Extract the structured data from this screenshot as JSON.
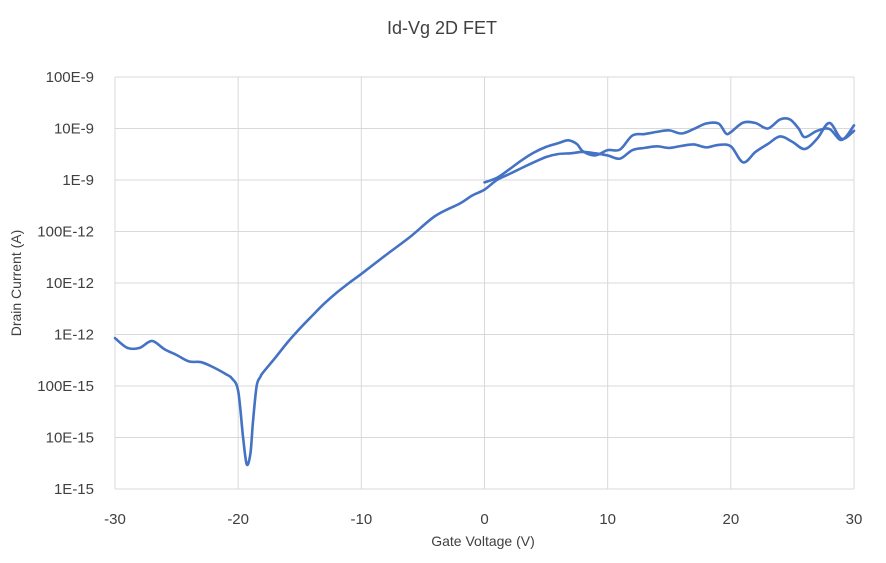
{
  "chart_data": {
    "type": "line",
    "title": "Id-Vg 2D FET",
    "xlabel": "Gate Voltage (V)",
    "ylabel": "Drain Current (A)",
    "xlim": [
      -30,
      30
    ],
    "ylim": [
      1e-15,
      1e-07
    ],
    "yscale": "log",
    "grid": true,
    "legend": "none",
    "color": "#4472C4",
    "x_ticks": [
      -30,
      -20,
      -10,
      0,
      10,
      20,
      30
    ],
    "x_tick_labels": [
      "-30",
      "-20",
      "-10",
      "0",
      "10",
      "20",
      "30"
    ],
    "y_ticks": [
      1e-15,
      1e-14,
      1e-13,
      1e-12,
      1e-11,
      1e-10,
      1e-09,
      1e-08,
      1e-07
    ],
    "y_tick_labels": [
      "1E-15",
      "10E-15",
      "100E-15",
      "1E-12",
      "10E-12",
      "100E-12",
      "1E-9",
      "10E-9",
      "100E-9"
    ],
    "series": [
      {
        "x": [
          0,
          1,
          2,
          3,
          4,
          5,
          6,
          6.8,
          7.5,
          8,
          9,
          10,
          11,
          12,
          13,
          14,
          15,
          16,
          17,
          18,
          19,
          19.6,
          20,
          21,
          22,
          23,
          24,
          24.8,
          25.5,
          26,
          27,
          28,
          29,
          30
        ],
        "y": [
          9e-10,
          1.1e-09,
          1.6e-09,
          2.4e-09,
          3.4e-09,
          4.4e-09,
          5.2e-09,
          5.9e-09,
          5e-09,
          3.6e-09,
          3e-09,
          3.8e-09,
          3.9e-09,
          7.3e-09,
          7.8e-09,
          8.6e-09,
          9.2e-09,
          8e-09,
          9.8e-09,
          1.25e-08,
          1.25e-08,
          8e-09,
          8.5e-09,
          1.3e-08,
          1.28e-08,
          1e-08,
          1.5e-08,
          1.5e-08,
          1e-08,
          6.8e-09,
          9e-09,
          9.8e-09,
          6e-09,
          1.15e-08
        ]
      },
      {
        "x": [
          -30,
          -29,
          -28,
          -27,
          -26,
          -25,
          -24,
          -23,
          -22,
          -21,
          -20.5,
          -20,
          -19.6,
          -19.3,
          -19,
          -18.8,
          -18.5,
          -18.2,
          -18,
          -17,
          -16,
          -15,
          -14,
          -13,
          -12,
          -11,
          -10,
          -8,
          -6,
          -4,
          -2,
          -1,
          0,
          1,
          2,
          3,
          4,
          5,
          6,
          7,
          8,
          9,
          10,
          11,
          12,
          13,
          14,
          15,
          16,
          17,
          18,
          19,
          20,
          21,
          22,
          23,
          24,
          25,
          26,
          27,
          28,
          29,
          30
        ],
        "y": [
          8.5e-13,
          5.5e-13,
          5.5e-13,
          7.5e-13,
          5.2e-13,
          4e-13,
          3e-13,
          2.9e-13,
          2.3e-13,
          1.7e-13,
          1.4e-13,
          8e-14,
          1e-14,
          3e-15,
          5e-15,
          2e-14,
          1e-13,
          1.5e-13,
          1.8e-13,
          3.5e-13,
          7e-13,
          1.3e-12,
          2.3e-12,
          4e-12,
          6.5e-12,
          1e-11,
          1.5e-11,
          3.5e-11,
          8e-11,
          2e-10,
          3.5e-10,
          5e-10,
          6.5e-10,
          1e-09,
          1.3e-09,
          1.7e-09,
          2.2e-09,
          2.8e-09,
          3.2e-09,
          3.3e-09,
          3.5e-09,
          3.3e-09,
          3e-09,
          2.6e-09,
          3.8e-09,
          4.2e-09,
          4.5e-09,
          4.2e-09,
          4.6e-09,
          4.9e-09,
          4.3e-09,
          4.8e-09,
          4.5e-09,
          2.2e-09,
          3.5e-09,
          5e-09,
          7e-09,
          5.5e-09,
          4e-09,
          6.3e-09,
          1.28e-08,
          6.3e-09,
          9e-09
        ]
      }
    ]
  }
}
